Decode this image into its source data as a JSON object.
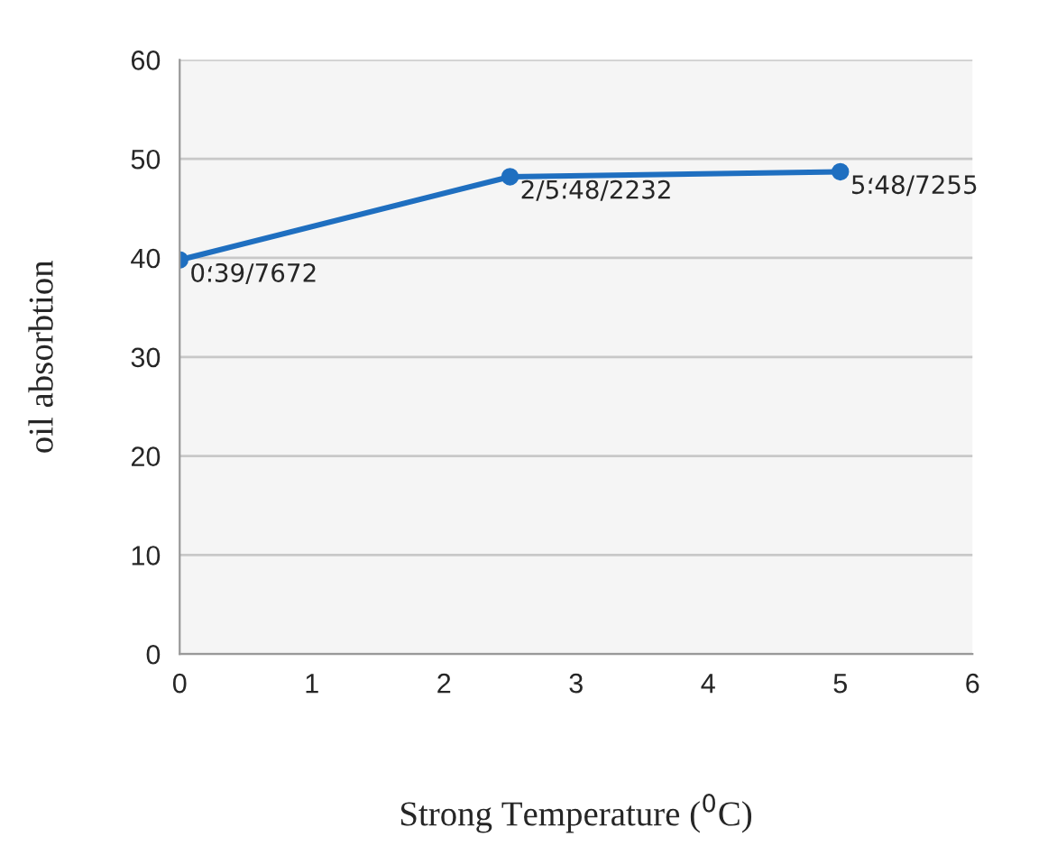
{
  "chart_data": {
    "type": "line",
    "xlabel": "Strong Temperature ($^{0}$C)",
    "ylabel": "oil absorbtion",
    "x": [
      0,
      2.5,
      5
    ],
    "series": [
      {
        "color": "#1f6fc0",
        "values": [
          39.8,
          48.2,
          48.7
        ]
      }
    ],
    "annotations": [
      {
        "text": "0؛39/7672",
        "x": 0,
        "y": 39.8
      },
      {
        "text": "2/5؛48/2232",
        "x": 2.5,
        "y": 48.2
      },
      {
        "text": "5؛48/7255",
        "x": 5,
        "y": 48.7
      }
    ],
    "xlim": [
      0,
      6
    ],
    "xticks": [
      0,
      1,
      2,
      3,
      4,
      5,
      6
    ],
    "ylim": [
      0,
      60
    ],
    "yticks": [
      0,
      10,
      20,
      30,
      40,
      50,
      60
    ],
    "grid": "y",
    "marker": "circle",
    "line_style": "solid"
  }
}
